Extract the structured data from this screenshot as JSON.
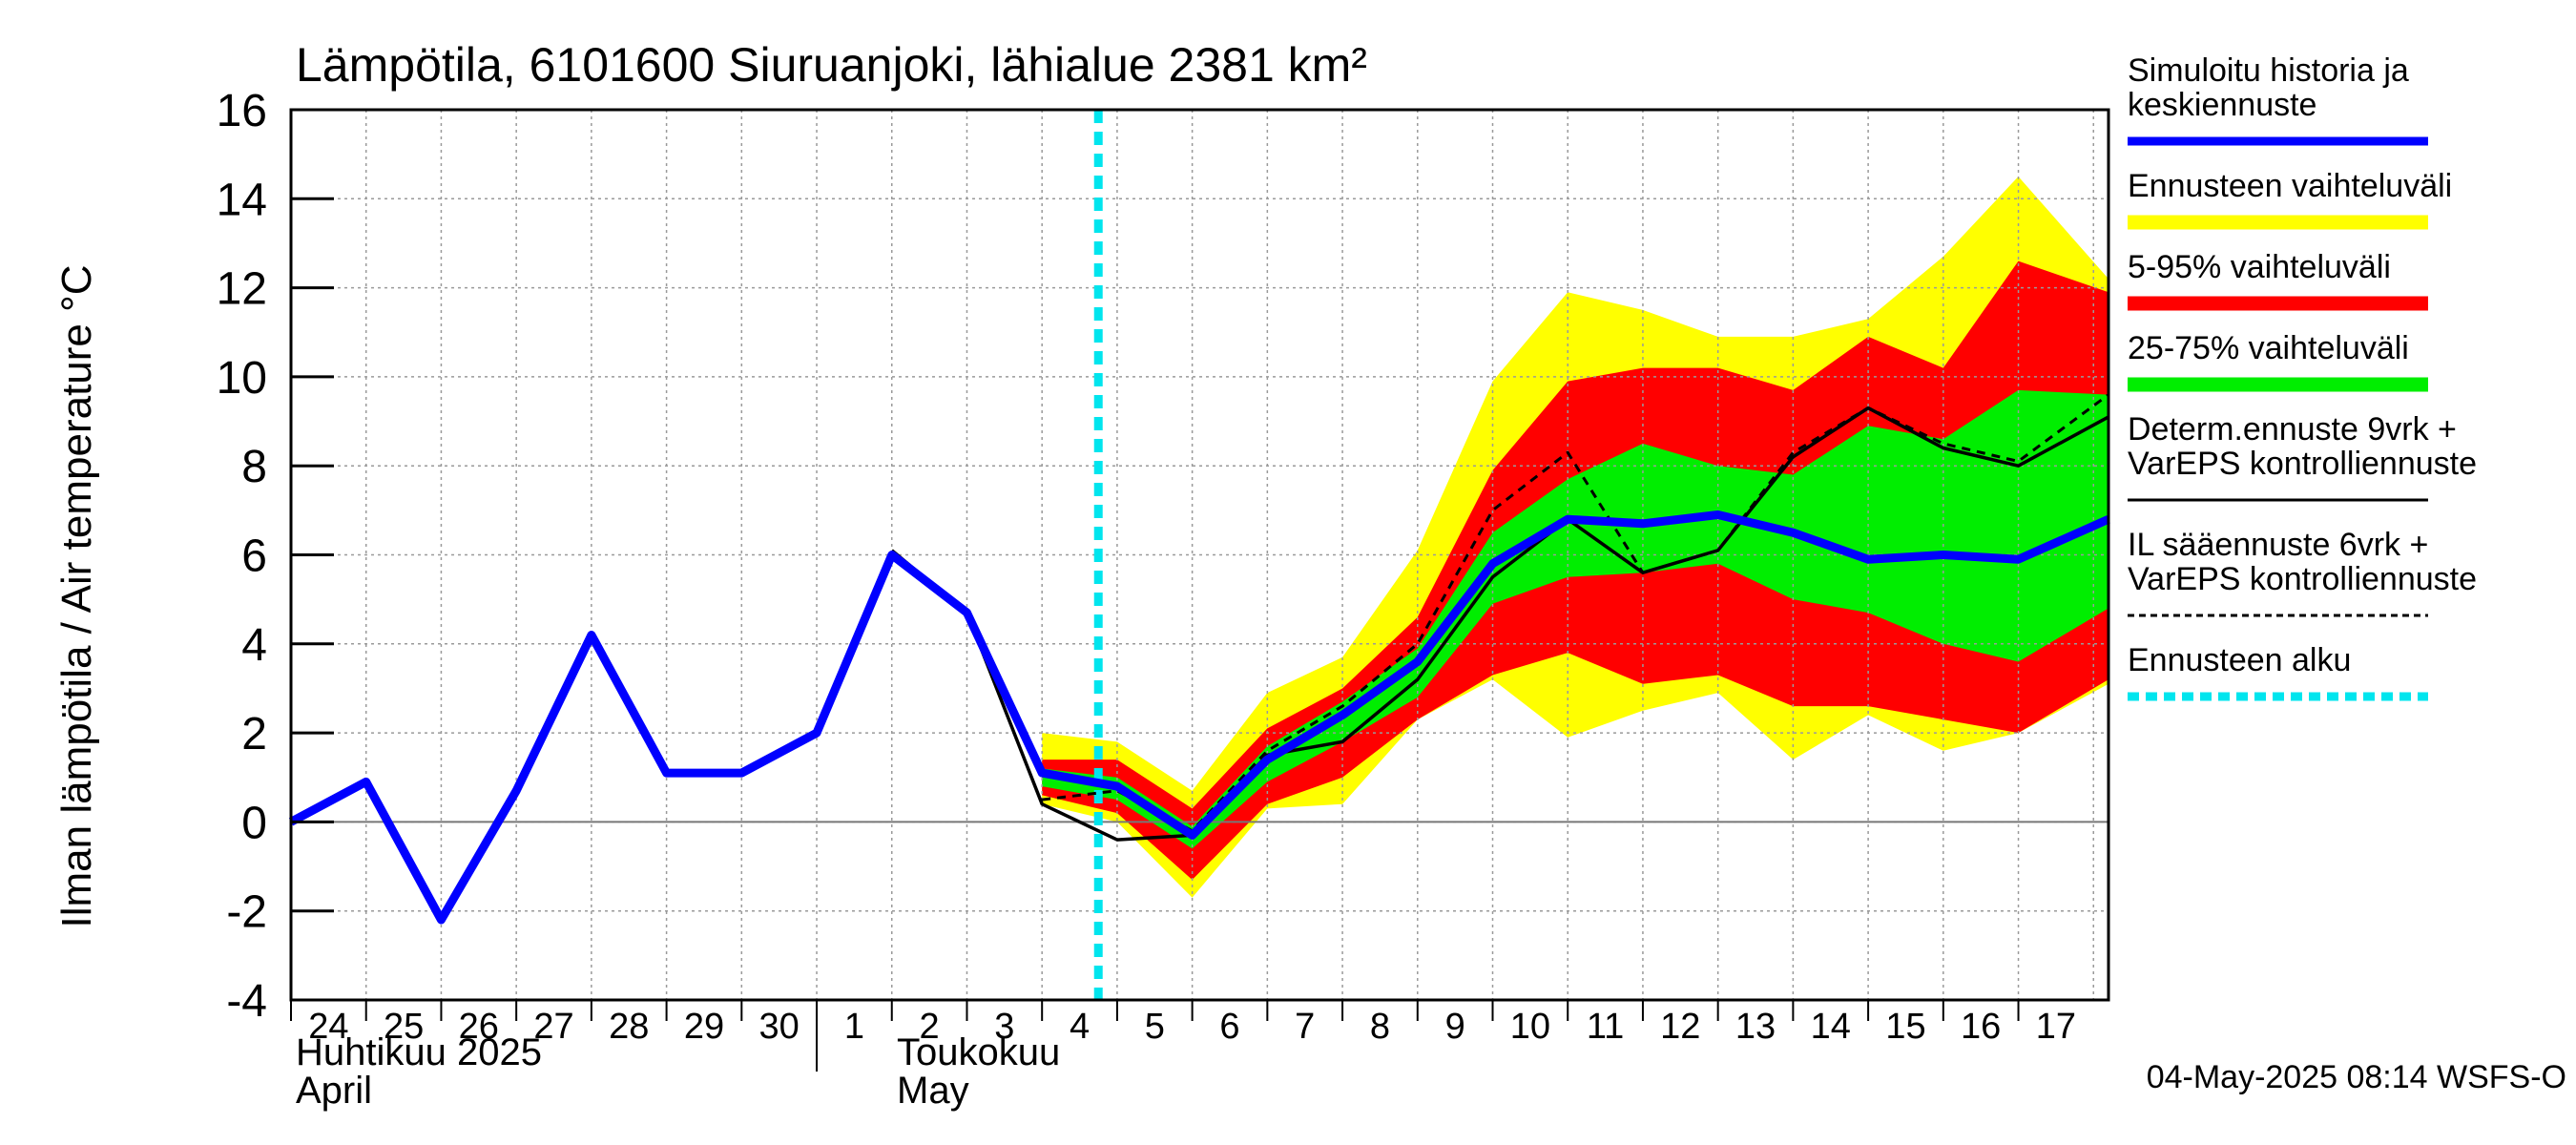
{
  "chart_data": {
    "type": "area",
    "title": "Lämpötila, 6101600 Siuruanjoki, lähialue 2381 km²",
    "ylabel": "Ilman lämpötila / Air temperature   °C",
    "ylim": [
      -4,
      16
    ],
    "yticks": [
      "-4",
      "-2",
      "0",
      "2",
      "4",
      "6",
      "8",
      "10",
      "12",
      "14",
      "16"
    ],
    "x_day_labels": [
      "24",
      "25",
      "26",
      "27",
      "28",
      "29",
      "30",
      "1",
      "2",
      "3",
      "4",
      "5",
      "6",
      "7",
      "8",
      "9",
      "10",
      "11",
      "12",
      "13",
      "14",
      "15",
      "16",
      "17"
    ],
    "month_labels": {
      "april_fi": "Huhtikuu  2025",
      "april_en": "April",
      "may_fi": "Toukokuu",
      "may_en": "May"
    },
    "x_range_days": [
      0,
      24.2
    ],
    "forecast_start_day": 10.75,
    "grid": true,
    "legend_position": "right",
    "bands": {
      "x": [
        10,
        11,
        12,
        13,
        14,
        15,
        16,
        17,
        18,
        19,
        20,
        21,
        22,
        23,
        24.2
      ],
      "range_hi": [
        2.0,
        1.8,
        0.7,
        2.9,
        3.7,
        6.1,
        9.9,
        11.9,
        11.5,
        10.9,
        10.9,
        11.3,
        12.7,
        14.5,
        12.2
      ],
      "range_lo": [
        0.4,
        0.0,
        -1.7,
        0.3,
        0.4,
        2.3,
        3.2,
        1.9,
        2.5,
        2.9,
        1.4,
        2.4,
        1.6,
        2.0,
        3.1
      ],
      "p95": [
        1.4,
        1.4,
        0.3,
        2.1,
        3.0,
        4.6,
        7.9,
        9.9,
        10.2,
        10.2,
        9.7,
        10.9,
        10.2,
        12.6,
        11.9
      ],
      "p5": [
        0.6,
        0.2,
        -1.3,
        0.4,
        1.0,
        2.3,
        3.3,
        3.8,
        3.1,
        3.3,
        2.6,
        2.6,
        2.3,
        2.0,
        3.2
      ],
      "p75": [
        1.2,
        1.0,
        -0.1,
        1.7,
        2.7,
        3.9,
        6.5,
        7.7,
        8.5,
        8.0,
        7.8,
        8.9,
        8.6,
        9.7,
        9.6
      ],
      "p25": [
        0.8,
        0.5,
        -0.6,
        0.9,
        1.8,
        2.8,
        4.9,
        5.5,
        5.6,
        5.8,
        5.0,
        4.7,
        4.0,
        3.6,
        4.8
      ]
    },
    "series": [
      {
        "name": "Simuloitu historia ja keskiennuste",
        "color": "#0000ff",
        "x": [
          0,
          1,
          2,
          3,
          4,
          5,
          6,
          7,
          8,
          9,
          10,
          11,
          12,
          13,
          14,
          15,
          16,
          17,
          18,
          19,
          20,
          21,
          22,
          23,
          24.2
        ],
        "y": [
          0.0,
          0.9,
          -2.2,
          0.7,
          4.2,
          1.1,
          1.1,
          2.0,
          6.0,
          4.7,
          1.1,
          0.8,
          -0.3,
          1.4,
          2.4,
          3.6,
          5.8,
          6.8,
          6.7,
          6.9,
          6.5,
          5.9,
          6.0,
          5.9,
          6.8
        ]
      },
      {
        "name": "Determ.ennuste 9vrk + VarEPS kontrolliennuste",
        "color": "#000000",
        "x": [
          8,
          9,
          10,
          11,
          12,
          13,
          14,
          15,
          16,
          17,
          18,
          19,
          20,
          21,
          22,
          23,
          24.2
        ],
        "y": [
          6.1,
          4.7,
          0.4,
          -0.4,
          -0.3,
          1.5,
          1.8,
          3.2,
          5.5,
          6.8,
          5.6,
          6.1,
          8.2,
          9.3,
          8.4,
          8.0,
          9.1
        ]
      },
      {
        "name": "IL sääennuste 6vrk + VarEPS kontrolliennuste",
        "color": "#000000",
        "x": [
          10,
          11,
          12,
          13,
          14,
          15,
          16,
          17,
          18,
          19,
          20,
          21,
          22,
          23,
          24.2
        ],
        "y": [
          0.5,
          0.7,
          -0.2,
          1.6,
          2.6,
          4.0,
          7.0,
          8.3,
          5.6,
          6.1,
          8.3,
          9.3,
          8.5,
          8.1,
          9.6
        ]
      }
    ],
    "legend": [
      {
        "label": "Simuloitu historia ja keskiennuste",
        "color": "#0000ff",
        "style": "line"
      },
      {
        "label": "Ennusteen vaihteluväli",
        "color": "#ffff00",
        "style": "band"
      },
      {
        "label": "5-95% vaihteluväli",
        "color": "#ff0000",
        "style": "band"
      },
      {
        "label": "25-75% vaihteluväli",
        "color": "#00ee00",
        "style": "band"
      },
      {
        "label": "Determ.ennuste 9vrk + VarEPS kontrolliennuste",
        "color": "#000000",
        "style": "line"
      },
      {
        "label": "IL sääennuste 6vrk + VarEPS kontrolliennuste",
        "color": "#000000",
        "style": "dashed"
      },
      {
        "label": "Ennusteen alku",
        "color": "#00e5ee",
        "style": "dashed"
      }
    ],
    "footer": "04-May-2025 08:14 WSFS-O"
  }
}
